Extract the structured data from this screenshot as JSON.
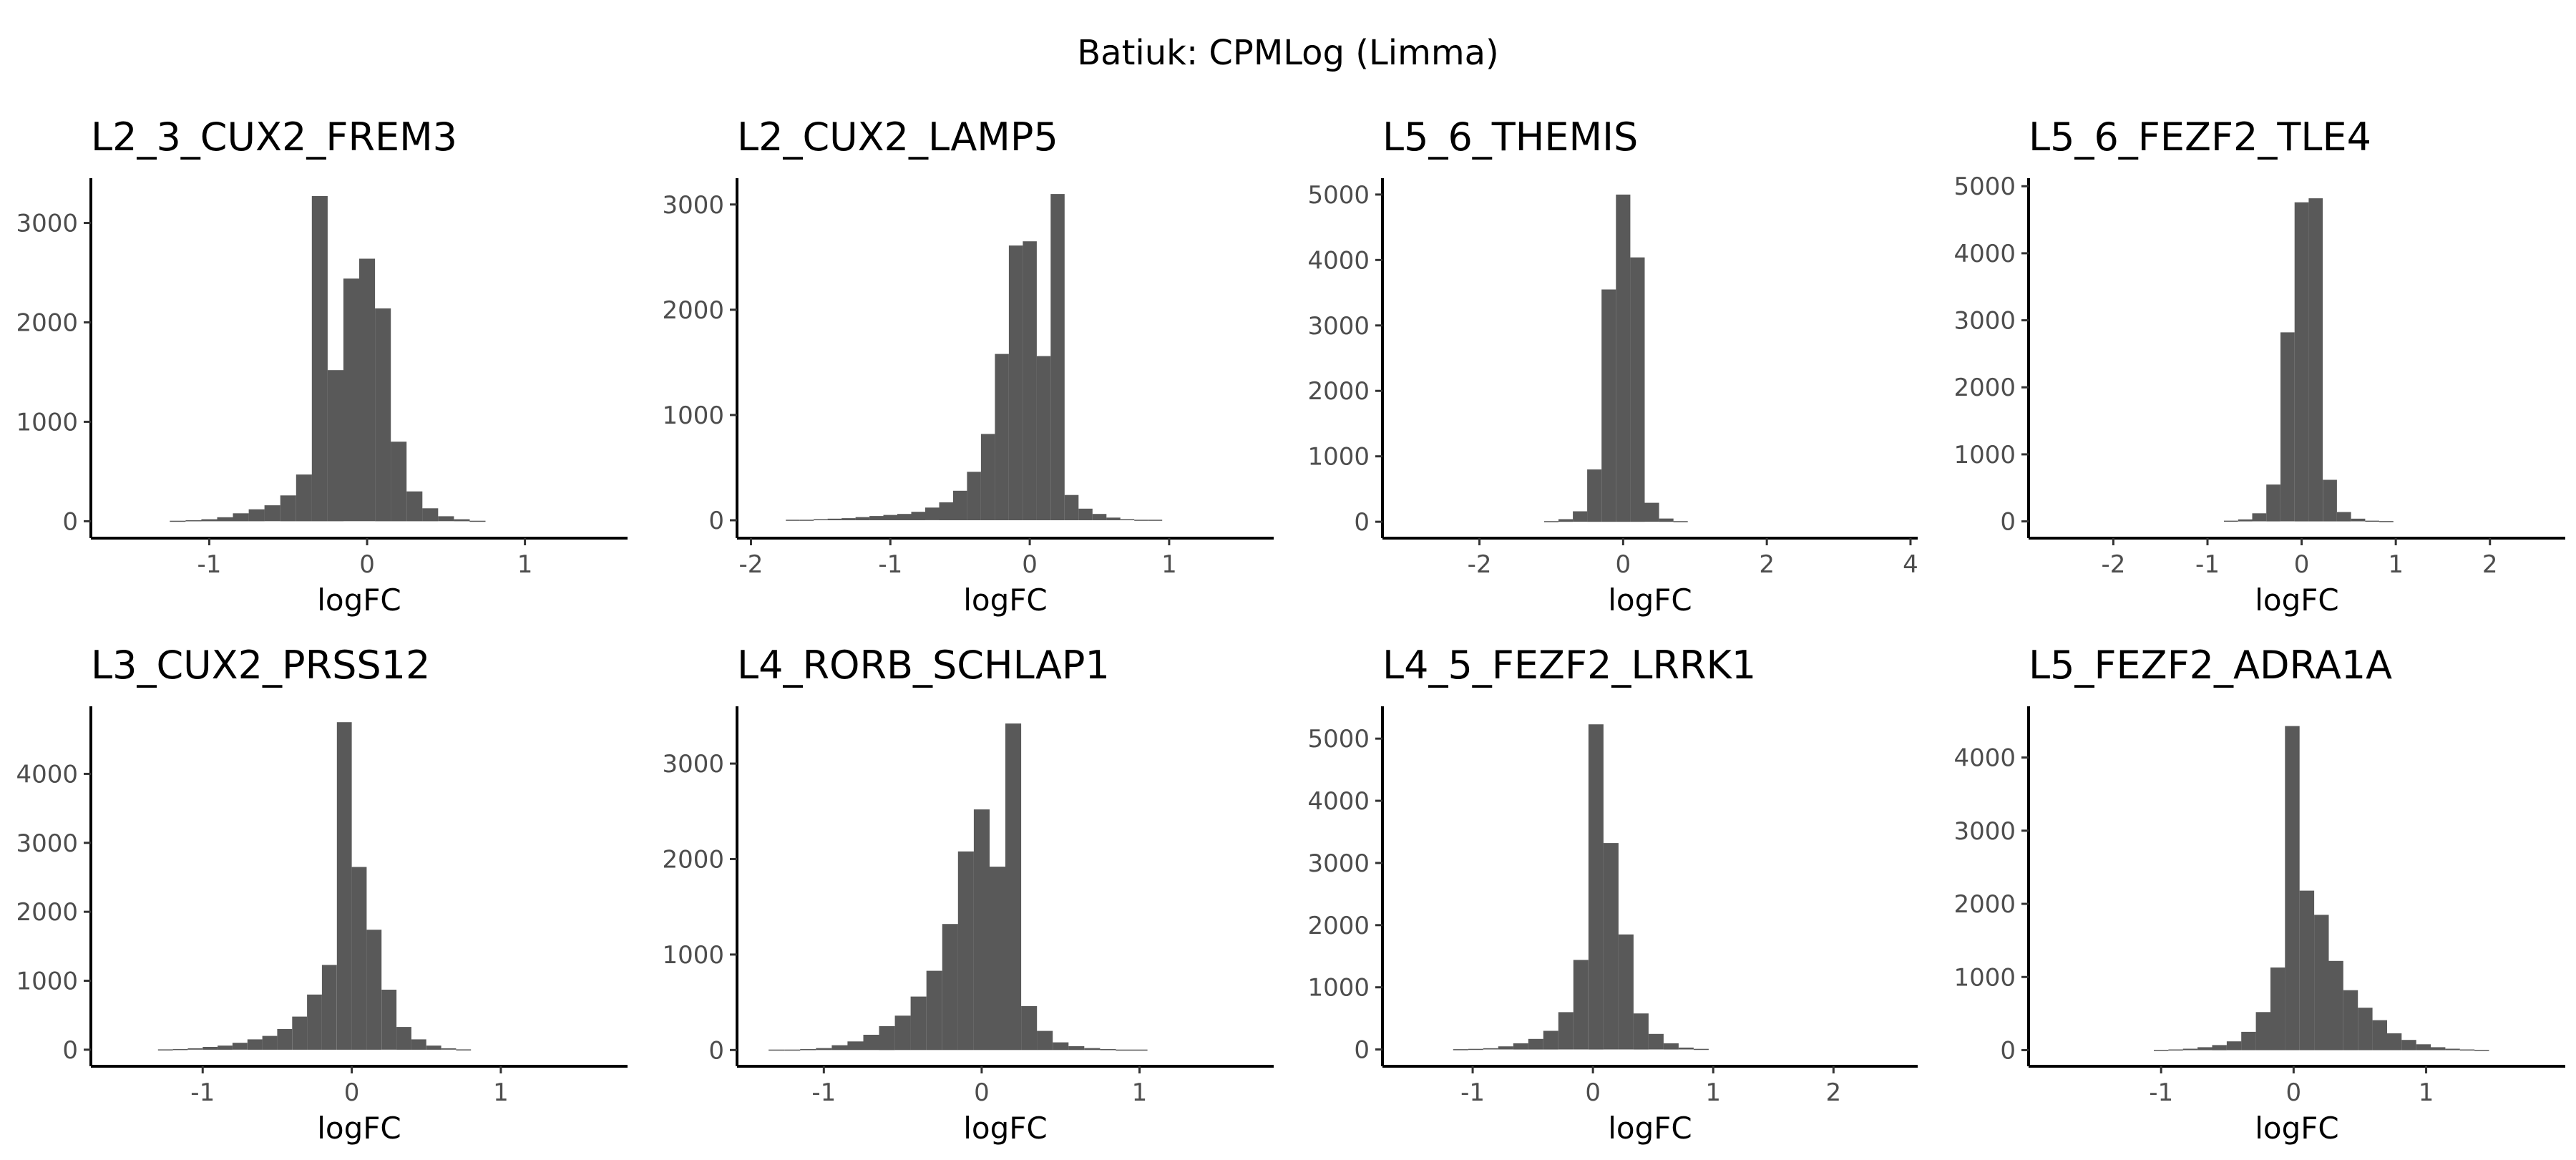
{
  "title": "Batiuk: CPMLog (Limma)",
  "colors": {
    "bar": "#595959",
    "axis": "#000000",
    "tick_text": "#4d4d4d",
    "background": "#ffffff"
  },
  "chart_data": [
    {
      "type": "bar",
      "title": "L2_3_CUX2_FREM3",
      "xlabel": "logFC",
      "ylabel": "",
      "xlim": [
        -1.75,
        1.65
      ],
      "ylim": [
        -170,
        3450
      ],
      "xticks": [
        -1,
        0,
        1
      ],
      "yticks": [
        0,
        1000,
        2000,
        3000
      ],
      "bin_width": 0.1,
      "x": [
        -1.2,
        -1.1,
        -1.0,
        -0.9,
        -0.8,
        -0.7,
        -0.6,
        -0.5,
        -0.4,
        -0.3,
        -0.2,
        -0.1,
        0.0,
        0.1,
        0.2,
        0.3,
        0.4,
        0.5,
        0.6,
        0.7
      ],
      "values": [
        5,
        10,
        20,
        40,
        80,
        120,
        160,
        260,
        470,
        3270,
        1520,
        2440,
        2640,
        2140,
        800,
        300,
        130,
        50,
        20,
        5
      ]
    },
    {
      "type": "bar",
      "title": "L2_CUX2_LAMP5",
      "xlabel": "logFC",
      "ylabel": "",
      "xlim": [
        -2.1,
        1.75
      ],
      "ylim": [
        -170,
        3250
      ],
      "xticks": [
        -2,
        -1,
        0,
        1
      ],
      "yticks": [
        0,
        1000,
        2000,
        3000
      ],
      "bin_width": 0.1,
      "x": [
        -1.7,
        -1.6,
        -1.5,
        -1.4,
        -1.3,
        -1.2,
        -1.1,
        -1.0,
        -0.9,
        -0.8,
        -0.7,
        -0.6,
        -0.5,
        -0.4,
        -0.3,
        -0.2,
        -0.1,
        0.0,
        0.1,
        0.2,
        0.3,
        0.4,
        0.5,
        0.6,
        0.7,
        0.8,
        0.9
      ],
      "values": [
        5,
        5,
        10,
        15,
        20,
        30,
        40,
        50,
        60,
        80,
        120,
        170,
        280,
        460,
        820,
        1580,
        2610,
        2650,
        1560,
        3100,
        240,
        110,
        60,
        25,
        10,
        5,
        5
      ]
    },
    {
      "type": "bar",
      "title": "L5_6_THEMIS",
      "xlabel": "logFC",
      "ylabel": "",
      "xlim": [
        -3.35,
        4.1
      ],
      "ylim": [
        -250,
        5250
      ],
      "xticks": [
        -2,
        0,
        2,
        4
      ],
      "yticks": [
        0,
        1000,
        2000,
        3000,
        4000,
        5000
      ],
      "bin_width": 0.2,
      "x": [
        -1.0,
        -0.8,
        -0.6,
        -0.4,
        -0.2,
        0.0,
        0.2,
        0.4,
        0.6,
        0.8
      ],
      "values": [
        10,
        40,
        160,
        800,
        3550,
        5000,
        4040,
        290,
        50,
        10
      ]
    },
    {
      "type": "bar",
      "title": "L5_6_FEZF2_TLE4",
      "xlabel": "logFC",
      "ylabel": "",
      "xlim": [
        -2.9,
        2.8
      ],
      "ylim": [
        -250,
        5120
      ],
      "xticks": [
        -2,
        -1,
        0,
        1,
        2
      ],
      "yticks": [
        0,
        1000,
        2000,
        3000,
        4000,
        5000
      ],
      "bin_width": 0.15,
      "x": [
        -0.75,
        -0.6,
        -0.45,
        -0.3,
        -0.15,
        0.0,
        0.15,
        0.3,
        0.45,
        0.6,
        0.75,
        0.9
      ],
      "values": [
        10,
        30,
        120,
        550,
        2820,
        4760,
        4820,
        620,
        140,
        40,
        10,
        5
      ]
    },
    {
      "type": "bar",
      "title": "L3_CUX2_PRSS12",
      "xlabel": "logFC",
      "ylabel": "",
      "xlim": [
        -1.75,
        1.85
      ],
      "ylim": [
        -240,
        4980
      ],
      "xticks": [
        -1,
        0,
        1
      ],
      "yticks": [
        0,
        1000,
        2000,
        3000,
        4000
      ],
      "bin_width": 0.1,
      "x": [
        -1.25,
        -1.15,
        -1.05,
        -0.95,
        -0.85,
        -0.75,
        -0.65,
        -0.55,
        -0.45,
        -0.35,
        -0.25,
        -0.15,
        -0.05,
        0.05,
        0.15,
        0.25,
        0.35,
        0.45,
        0.55,
        0.65,
        0.75
      ],
      "values": [
        5,
        10,
        20,
        40,
        60,
        100,
        150,
        200,
        300,
        480,
        800,
        1230,
        4750,
        2650,
        1740,
        870,
        330,
        150,
        60,
        20,
        5
      ]
    },
    {
      "type": "bar",
      "title": "L4_RORB_SCHLAP1",
      "xlabel": "logFC",
      "ylabel": "",
      "xlim": [
        -1.55,
        1.85
      ],
      "ylim": [
        -170,
        3600
      ],
      "xticks": [
        -1,
        0,
        1
      ],
      "yticks": [
        0,
        1000,
        2000,
        3000
      ],
      "bin_width": 0.1,
      "x": [
        -1.3,
        -1.2,
        -1.1,
        -1.0,
        -0.9,
        -0.8,
        -0.7,
        -0.6,
        -0.5,
        -0.4,
        -0.3,
        -0.2,
        -0.1,
        0.0,
        0.1,
        0.2,
        0.3,
        0.4,
        0.5,
        0.6,
        0.7,
        0.8,
        0.9,
        1.0
      ],
      "values": [
        5,
        5,
        10,
        20,
        50,
        90,
        160,
        250,
        360,
        560,
        830,
        1320,
        2080,
        2520,
        1920,
        3420,
        460,
        200,
        80,
        40,
        20,
        10,
        5,
        5
      ]
    },
    {
      "type": "bar",
      "title": "L4_5_FEZF2_LRRK1",
      "xlabel": "logFC",
      "ylabel": "",
      "xlim": [
        -1.75,
        2.7
      ],
      "ylim": [
        -270,
        5520
      ],
      "xticks": [
        -1,
        0,
        1,
        2
      ],
      "yticks": [
        0,
        1000,
        2000,
        3000,
        4000,
        5000
      ],
      "bin_width": 0.125,
      "x": [
        -1.1,
        -0.975,
        -0.85,
        -0.725,
        -0.6,
        -0.475,
        -0.35,
        -0.225,
        -0.1,
        0.025,
        0.15,
        0.275,
        0.4,
        0.525,
        0.65,
        0.775,
        0.9
      ],
      "values": [
        5,
        10,
        20,
        50,
        100,
        170,
        300,
        600,
        1440,
        5230,
        3320,
        1850,
        580,
        250,
        100,
        30,
        10
      ]
    },
    {
      "type": "bar",
      "title": "L5_FEZF2_ADRA1A",
      "xlabel": "logFC",
      "ylabel": "",
      "xlim": [
        -2.0,
        2.05
      ],
      "ylim": [
        -220,
        4700
      ],
      "xticks": [
        -1,
        0,
        1
      ],
      "yticks": [
        0,
        1000,
        2000,
        3000,
        4000
      ],
      "bin_width": 0.11,
      "x": [
        -1.0,
        -0.89,
        -0.78,
        -0.67,
        -0.56,
        -0.45,
        -0.34,
        -0.23,
        -0.12,
        -0.01,
        0.1,
        0.21,
        0.32,
        0.43,
        0.54,
        0.65,
        0.76,
        0.87,
        0.98,
        1.09,
        1.2,
        1.31,
        1.42
      ],
      "values": [
        5,
        10,
        20,
        40,
        70,
        120,
        250,
        520,
        1130,
        4430,
        2180,
        1850,
        1220,
        820,
        580,
        410,
        230,
        140,
        80,
        40,
        20,
        10,
        5
      ]
    }
  ]
}
